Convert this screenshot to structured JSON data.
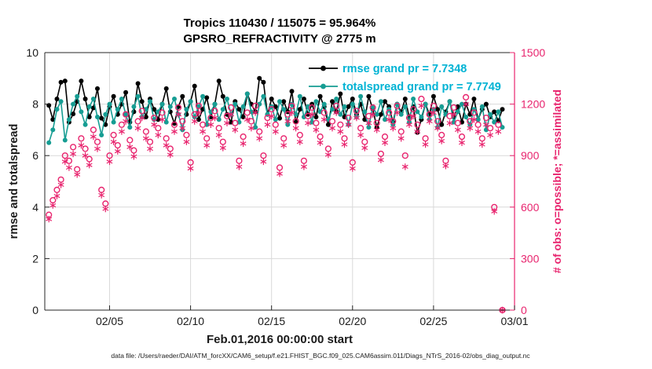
{
  "chart_data": {
    "type": "line",
    "title": "Tropics 110430 / 115075 = 95.964%",
    "subtitle": "GPSRO_REFRACTIVITY @ 2775 m",
    "xlabel": "Feb.01,2016 00:00:00 start",
    "ylabel_left": "rmse and totalspread",
    "ylabel_right": "# of obs: o=possible; *=assimilated",
    "footer": "data file: /Users/raeder/DAI/ATM_forcXX/CAM6_setup/f.e21.FHIST_BGC.f09_025.CAM6assim.011/Diags_NTrS_2016-02/obs_diag_output.nc",
    "grid": true,
    "x_domain_days": [
      0,
      29
    ],
    "x_start_day": 0.25,
    "x_step_days": 0.25,
    "x_tick_days": [
      4,
      9,
      14,
      19,
      24,
      29
    ],
    "x_tick_labels": [
      "02/05",
      "02/10",
      "02/15",
      "02/20",
      "02/25",
      "03/01"
    ],
    "y_left_lim": [
      0,
      10
    ],
    "y_left_ticks": [
      0,
      2,
      4,
      6,
      8,
      10
    ],
    "y_right_lim": [
      0,
      1500
    ],
    "y_right_ticks": [
      0,
      300,
      600,
      900,
      1200,
      1500
    ],
    "legend": {
      "position": "top-right-inside",
      "text_color": "#00b3d4",
      "entries": [
        {
          "label": "rmse grand pr = 7.7348",
          "series": "rmse"
        },
        {
          "label": "totalspread grand pr = 7.7749",
          "series": "totalspread"
        }
      ]
    },
    "colors": {
      "rmse": "#000000",
      "totalspread": "#169d93",
      "obs": "#e8246e",
      "grid": "#d9d9d9",
      "axis": "#262626",
      "tick_label": "#1a1a1a"
    },
    "series": [
      {
        "name": "rmse",
        "axis": "left",
        "marker": "dot-line",
        "values": [
          7.95,
          7.4,
          8.2,
          8.85,
          8.9,
          7.3,
          7.62,
          8.1,
          8.9,
          8.2,
          7.5,
          7.85,
          8.6,
          7.45,
          7.2,
          7.9,
          8.3,
          7.6,
          8.0,
          8.45,
          7.3,
          7.7,
          8.8,
          8.1,
          7.5,
          8.2,
          7.8,
          7.4,
          8.0,
          8.6,
          7.7,
          7.25,
          7.9,
          8.3,
          7.6,
          8.1,
          8.7,
          7.4,
          7.8,
          8.25,
          7.5,
          8.0,
          8.9,
          8.3,
          7.6,
          7.3,
          8.1,
          7.8,
          7.5,
          8.4,
          8.0,
          7.7,
          9.0,
          8.85,
          7.6,
          8.2,
          7.9,
          7.45,
          8.1,
          7.7,
          8.5,
          7.3,
          7.8,
          8.2,
          7.6,
          8.0,
          7.5,
          8.3,
          7.9,
          7.2,
          8.1,
          7.7,
          8.4,
          7.5,
          7.9,
          8.2,
          7.6,
          8.0,
          7.4,
          8.3,
          7.8,
          7.1,
          7.6,
          8.1,
          7.9,
          7.3,
          8.0,
          7.7,
          8.2,
          7.5,
          7.9,
          6.9,
          7.4,
          8.0,
          7.6,
          8.3,
          7.8,
          7.2,
          7.7,
          8.1,
          7.5,
          7.9,
          7.3,
          8.0,
          7.6,
          8.2,
          7.4,
          7.8,
          8.0,
          7.5,
          7.7,
          7.35,
          7.8
        ]
      },
      {
        "name": "totalspread",
        "axis": "left",
        "marker": "dot-line",
        "values": [
          6.5,
          7.0,
          7.8,
          8.1,
          6.6,
          7.4,
          8.0,
          8.3,
          7.7,
          7.2,
          7.9,
          8.2,
          7.5,
          6.8,
          7.6,
          8.0,
          7.3,
          7.8,
          8.2,
          7.6,
          7.1,
          7.9,
          8.3,
          7.5,
          7.8,
          8.1,
          7.4,
          7.7,
          8.0,
          7.3,
          7.9,
          8.2,
          7.6,
          7.0,
          7.8,
          8.1,
          7.5,
          7.9,
          8.3,
          7.2,
          7.7,
          8.0,
          7.4,
          7.8,
          8.2,
          7.6,
          8.0,
          7.3,
          7.9,
          8.4,
          7.7,
          7.1,
          8.0,
          8.3,
          7.6,
          7.9,
          7.4,
          8.1,
          7.8,
          7.2,
          8.0,
          7.6,
          8.3,
          7.5,
          7.9,
          7.3,
          8.1,
          7.7,
          8.0,
          7.4,
          7.8,
          8.2,
          7.6,
          7.9,
          7.2,
          8.0,
          7.5,
          8.3,
          7.7,
          7.1,
          7.9,
          7.6,
          8.1,
          7.4,
          7.8,
          7.2,
          8.0,
          7.6,
          7.9,
          7.3,
          8.2,
          7.7,
          7.5,
          8.0,
          7.4,
          7.8,
          7.1,
          7.9,
          7.6,
          8.1,
          7.3,
          7.7,
          8.0,
          7.5,
          7.2,
          7.8,
          7.4,
          7.9,
          7.0,
          7.6,
          7.3,
          7.7,
          7.1
        ]
      },
      {
        "name": "possible",
        "axis": "right",
        "marker": "circle",
        "values": [
          555,
          640,
          700,
          760,
          900,
          870,
          950,
          820,
          1000,
          940,
          880,
          1050,
          980,
          700,
          620,
          900,
          1020,
          960,
          1080,
          1140,
          990,
          930,
          1100,
          1160,
          1040,
          980,
          1120,
          1060,
          1150,
          1000,
          940,
          1080,
          1180,
          1100,
          1020,
          860,
          1140,
          1190,
          1080,
          1000,
          1120,
          1160,
          1060,
          980,
          1130,
          1180,
          1090,
          870,
          1010,
          1150,
          1100,
          1190,
          1040,
          900,
          1120,
          1170,
          1080,
          830,
          1000,
          1140,
          1190,
          1100,
          1020,
          870,
          1130,
          1180,
          1090,
          1010,
          1150,
          940,
          1100,
          1190,
          1080,
          1000,
          1120,
          860,
          1160,
          1060,
          980,
          1130,
          1180,
          1090,
          910,
          1010,
          1150,
          1100,
          1190,
          1040,
          900,
          1120,
          1170,
          1080,
          1230,
          1000,
          1140,
          1190,
          1100,
          1020,
          870,
          1130,
          1180,
          1090,
          1010,
          1240,
          1100,
          1150,
          1080,
          1000,
          1120,
          1060,
          600,
          1080,
          0
        ]
      },
      {
        "name": "assimilated",
        "axis": "right",
        "marker": "asterisk",
        "values": [
          530,
          610,
          665,
          730,
          865,
          830,
          910,
          790,
          960,
          900,
          845,
          1010,
          940,
          670,
          590,
          865,
          980,
          925,
          1040,
          1100,
          950,
          895,
          1060,
          1120,
          1000,
          940,
          1080,
          1020,
          1110,
          960,
          905,
          1040,
          1140,
          1060,
          980,
          825,
          1100,
          1150,
          1040,
          960,
          1080,
          1120,
          1020,
          945,
          1090,
          1140,
          1050,
          835,
          970,
          1110,
          1060,
          1150,
          1000,
          865,
          1080,
          1130,
          1040,
          795,
          960,
          1100,
          1150,
          1060,
          980,
          835,
          1090,
          1140,
          1050,
          975,
          1110,
          905,
          1060,
          1150,
          1040,
          965,
          1080,
          825,
          1120,
          1020,
          945,
          1090,
          1140,
          1050,
          875,
          975,
          1110,
          1060,
          1150,
          1000,
          835,
          1080,
          1130,
          1040,
          1190,
          965,
          1100,
          1150,
          1060,
          985,
          840,
          1090,
          1140,
          1050,
          975,
          1200,
          1060,
          1110,
          1040,
          965,
          1080,
          1020,
          575,
          1040,
          0
        ]
      }
    ]
  }
}
